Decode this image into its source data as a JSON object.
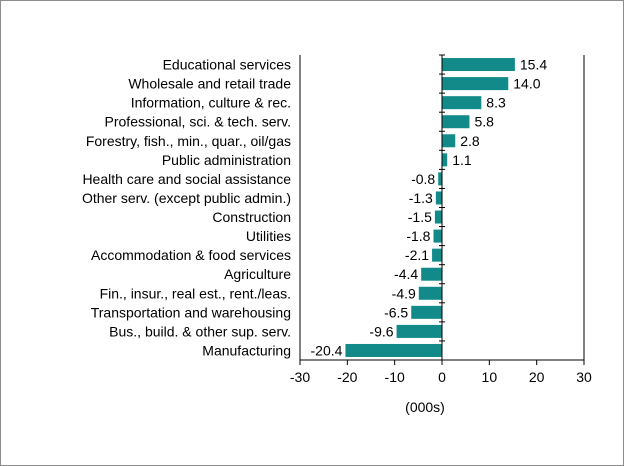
{
  "chart_data": {
    "type": "bar",
    "orientation": "horizontal",
    "categories": [
      "Educational services",
      "Wholesale and retail trade",
      "Information, culture & rec.",
      "Professional, sci. & tech. serv.",
      "Forestry, fish., min., quar., oil/gas",
      "Public administration",
      "Health care and social assistance",
      "Other serv. (except public admin.)",
      "Construction",
      "Utilities",
      "Accommodation & food services",
      "Agriculture",
      "Fin., insur., real est., rent./leas.",
      "Transportation and warehousing",
      "Bus., build. & other sup. serv.",
      "Manufacturing"
    ],
    "values": [
      15.4,
      14.0,
      8.3,
      5.8,
      2.8,
      1.1,
      -0.8,
      -1.3,
      -1.5,
      -1.8,
      -2.1,
      -4.4,
      -4.9,
      -6.5,
      -9.6,
      -20.4
    ],
    "value_labels": [
      "15.4",
      "14.0",
      "8.3",
      "5.8",
      "2.8",
      "1.1",
      "-0.8",
      "-1.3",
      "-1.5",
      "-1.8",
      "-2.1",
      "-4.4",
      "-4.9",
      "-6.5",
      "-9.6",
      "-20.4"
    ],
    "xlabel": "(000s)",
    "xlim": [
      -30,
      30
    ],
    "xticks": [
      "-30",
      "-20",
      "-10",
      "0",
      "10",
      "20",
      "30"
    ],
    "grid": false,
    "legend": "none",
    "bar_color": "#138a8a",
    "axis_color": "#000000"
  }
}
